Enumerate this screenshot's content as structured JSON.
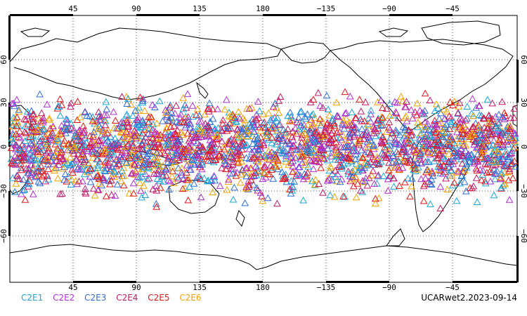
{
  "map": {
    "lon_ticks": [
      "45",
      "90",
      "135",
      "180",
      "−135",
      "−90",
      "−45"
    ],
    "lat_ticks": [
      "60",
      "30",
      "0",
      "−30",
      "−60"
    ]
  },
  "legend": {
    "items": [
      {
        "label": "C2E1",
        "color": "#1aa7d8"
      },
      {
        "label": "C2E2",
        "color": "#b02fd0"
      },
      {
        "label": "C2E3",
        "color": "#2f6fd6"
      },
      {
        "label": "C2E4",
        "color": "#c01a6a"
      },
      {
        "label": "C2E5",
        "color": "#e01818"
      },
      {
        "label": "C2E6",
        "color": "#f2a400"
      }
    ]
  },
  "credit": "UCARwet2.2023-09-14",
  "colors": {
    "frame": "#000000",
    "coast": "#000000"
  }
}
